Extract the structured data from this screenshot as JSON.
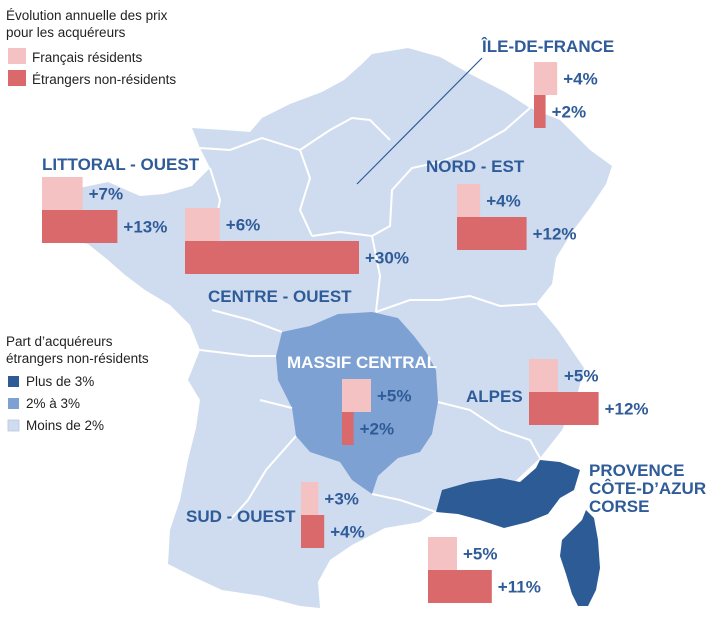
{
  "legend_prices": {
    "title_line1": "Évolution annuelle des prix",
    "title_line2": "pour les acquéreurs",
    "items": [
      {
        "label": "Français résidents",
        "color": "#f4c2c2"
      },
      {
        "label": "Étrangers non-résidents",
        "color": "#d9696a"
      }
    ]
  },
  "legend_share": {
    "title_line1": "Part d’acquéreurs",
    "title_line2": "étrangers non-résidents",
    "items": [
      {
        "label": "Plus de 3%",
        "color": "#2c5b96"
      },
      {
        "label": "2% à 3%",
        "color": "#7ea1d3"
      },
      {
        "label": "Moins de 2%",
        "color": "#cfdcef"
      }
    ]
  },
  "regions": [
    {
      "id": "ile-de-france",
      "name": "ÎLE-DE-FRANCE",
      "residents": 4,
      "non_residents": 2,
      "residents_label": "+4%",
      "non_residents_label": "+2%",
      "share": "Moins de 2%"
    },
    {
      "id": "littoral-ouest",
      "name": "LITTORAL - OUEST",
      "residents": 7,
      "non_residents": 13,
      "residents_label": "+7%",
      "non_residents_label": "+13%",
      "share": "Moins de 2%"
    },
    {
      "id": "nord-est",
      "name": "NORD - EST",
      "residents": 4,
      "non_residents": 12,
      "residents_label": "+4%",
      "non_residents_label": "+12%",
      "share": "Moins de 2%"
    },
    {
      "id": "centre-ouest",
      "name": "CENTRE - OUEST",
      "residents": 6,
      "non_residents": 30,
      "residents_label": "+6%",
      "non_residents_label": "+30%",
      "share": "Moins de 2%"
    },
    {
      "id": "massif-central",
      "name": "MASSIF CENTRAL",
      "residents": 5,
      "non_residents": 2,
      "residents_label": "+5%",
      "non_residents_label": "+2%",
      "share": "2% à 3%"
    },
    {
      "id": "alpes",
      "name": "ALPES",
      "residents": 5,
      "non_residents": 12,
      "residents_label": "+5%",
      "non_residents_label": "+12%",
      "share": "Moins de 2%"
    },
    {
      "id": "sud-ouest",
      "name": "SUD - OUEST",
      "residents": 3,
      "non_residents": 4,
      "residents_label": "+3%",
      "non_residents_label": "+4%",
      "share": "Moins de 2%"
    },
    {
      "id": "provence",
      "name_lines": [
        "PROVENCE",
        "CÔTE-D’AZUR",
        "CORSE"
      ],
      "residents": 5,
      "non_residents": 11,
      "residents_label": "+5%",
      "non_residents_label": "+11%",
      "share": "Plus de 3%"
    }
  ],
  "colors": {
    "map_light": "#cfdcef",
    "map_mid": "#7ea1d3",
    "map_dark": "#2c5b96",
    "border": "#ffffff",
    "bar_residents": "#f4c2c2",
    "bar_non_residents": "#d9696a",
    "label": "#2f5c99"
  }
}
